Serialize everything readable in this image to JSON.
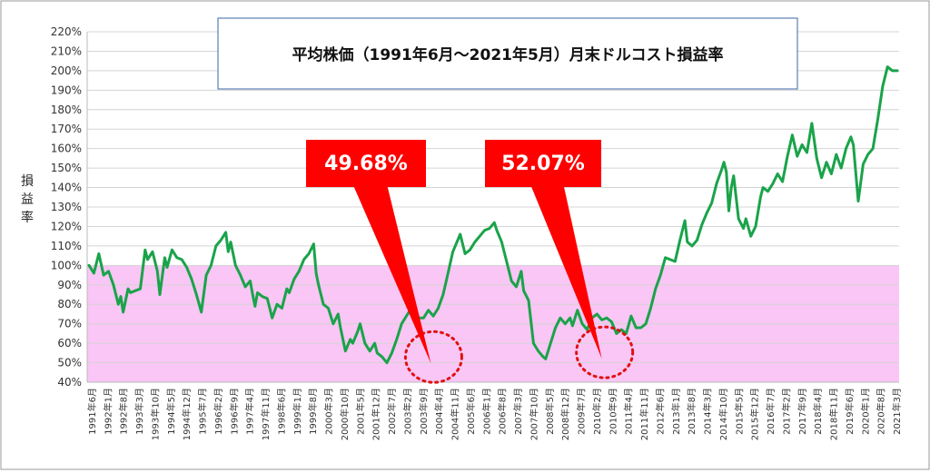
{
  "chart_data": {
    "type": "line",
    "title": "平均株価（1991年6月～2021年5月）月末ドルコスト損益率",
    "ylabel": "損益率",
    "ylim": [
      40,
      220
    ],
    "y_ticks": [
      "40%",
      "50%",
      "60%",
      "70%",
      "80%",
      "90%",
      "100%",
      "110%",
      "120%",
      "130%",
      "140%",
      "150%",
      "160%",
      "170%",
      "180%",
      "190%",
      "200%",
      "210%",
      "220%"
    ],
    "x_tick_labels": [
      "1991年6月",
      "1992年1月",
      "1992年8月",
      "1993年3月",
      "1993年10月",
      "1994年5月",
      "1994年12月",
      "1995年7月",
      "1996年2月",
      "1996年9月",
      "1997年4月",
      "1997年11月",
      "1998年6月",
      "1999年1月",
      "1999年8月",
      "2000年3月",
      "2000年10月",
      "2001年5月",
      "2001年12月",
      "2002年7月",
      "2003年2月",
      "2003年9月",
      "2004年4月",
      "2004年11月",
      "2005年6月",
      "2006年1月",
      "2006年8月",
      "2007年3月",
      "2007年10月",
      "2008年5月",
      "2008年12月",
      "2009年7月",
      "2010年2月",
      "2010年9月",
      "2011年4月",
      "2011年11月",
      "2012年6月",
      "2013年1月",
      "2013年8月",
      "2014年3月",
      "2014年10月",
      "2015年5月",
      "2015年12月",
      "2016年7月",
      "2017年2月",
      "2017年9月",
      "2018年4月",
      "2018年11月",
      "2019年6月",
      "2020年1月",
      "2020年8月",
      "2021年3月"
    ],
    "loss_zone": {
      "from": 40,
      "to": 100,
      "color": "#f9c6f5"
    },
    "line_color": "#1aa34a",
    "callout_color": "#ff0000",
    "annotations": [
      {
        "label": "49.68%",
        "month_index": 140,
        "value": 49.68
      },
      {
        "label": "52.07%",
        "month_index": 210,
        "value": 52.07
      }
    ],
    "keypoints": [
      [
        0,
        100
      ],
      [
        2,
        96
      ],
      [
        4,
        106
      ],
      [
        6,
        95
      ],
      [
        8,
        97
      ],
      [
        10,
        90
      ],
      [
        12,
        80
      ],
      [
        13,
        84
      ],
      [
        14,
        76
      ],
      [
        16,
        88
      ],
      [
        17,
        86
      ],
      [
        19,
        87
      ],
      [
        21,
        88
      ],
      [
        23,
        108
      ],
      [
        24,
        103
      ],
      [
        26,
        107
      ],
      [
        28,
        97
      ],
      [
        29,
        85
      ],
      [
        31,
        104
      ],
      [
        32,
        99
      ],
      [
        34,
        108
      ],
      [
        36,
        104
      ],
      [
        38,
        103
      ],
      [
        40,
        99
      ],
      [
        42,
        93
      ],
      [
        44,
        85
      ],
      [
        46,
        76
      ],
      [
        48,
        95
      ],
      [
        50,
        100
      ],
      [
        52,
        110
      ],
      [
        54,
        113
      ],
      [
        56,
        117
      ],
      [
        57,
        107
      ],
      [
        58,
        112
      ],
      [
        60,
        100
      ],
      [
        62,
        95
      ],
      [
        64,
        89
      ],
      [
        66,
        92
      ],
      [
        67,
        85
      ],
      [
        68,
        79
      ],
      [
        69,
        86
      ],
      [
        71,
        84
      ],
      [
        73,
        83
      ],
      [
        75,
        73
      ],
      [
        77,
        80
      ],
      [
        79,
        78
      ],
      [
        81,
        88
      ],
      [
        82,
        86
      ],
      [
        84,
        93
      ],
      [
        86,
        97
      ],
      [
        88,
        103
      ],
      [
        90,
        106
      ],
      [
        92,
        111
      ],
      [
        93,
        96
      ],
      [
        94,
        90
      ],
      [
        96,
        80
      ],
      [
        98,
        78
      ],
      [
        100,
        70
      ],
      [
        102,
        75
      ],
      [
        103,
        68
      ],
      [
        105,
        56
      ],
      [
        107,
        62
      ],
      [
        108,
        60
      ],
      [
        110,
        66
      ],
      [
        111,
        70
      ],
      [
        113,
        60
      ],
      [
        115,
        56
      ],
      [
        117,
        60
      ],
      [
        118,
        55
      ],
      [
        120,
        53
      ],
      [
        122,
        50
      ],
      [
        124,
        55
      ],
      [
        126,
        62
      ],
      [
        128,
        70
      ],
      [
        130,
        74
      ],
      [
        132,
        78
      ],
      [
        133,
        77
      ],
      [
        135,
        73
      ],
      [
        137,
        73
      ],
      [
        139,
        77
      ],
      [
        141,
        74
      ],
      [
        143,
        78
      ],
      [
        145,
        85
      ],
      [
        147,
        96
      ],
      [
        149,
        107
      ],
      [
        151,
        113
      ],
      [
        152,
        116
      ],
      [
        154,
        106
      ],
      [
        156,
        108
      ],
      [
        158,
        112
      ],
      [
        160,
        115
      ],
      [
        162,
        118
      ],
      [
        164,
        119
      ],
      [
        166,
        122
      ],
      [
        167,
        118
      ],
      [
        169,
        112
      ],
      [
        171,
        102
      ],
      [
        173,
        92
      ],
      [
        175,
        89
      ],
      [
        177,
        97
      ],
      [
        178,
        87
      ],
      [
        180,
        82
      ],
      [
        182,
        60
      ],
      [
        184,
        56
      ],
      [
        186,
        53
      ],
      [
        187,
        52
      ],
      [
        189,
        60
      ],
      [
        191,
        68
      ],
      [
        193,
        73
      ],
      [
        195,
        70
      ],
      [
        197,
        73
      ],
      [
        198,
        69
      ],
      [
        200,
        77
      ],
      [
        202,
        70
      ],
      [
        204,
        67
      ],
      [
        206,
        73
      ],
      [
        208,
        75
      ],
      [
        210,
        72
      ],
      [
        212,
        73
      ],
      [
        214,
        71
      ],
      [
        216,
        65
      ],
      [
        218,
        67
      ],
      [
        220,
        65
      ],
      [
        222,
        74
      ],
      [
        224,
        68
      ],
      [
        226,
        68
      ],
      [
        228,
        70
      ],
      [
        230,
        78
      ],
      [
        232,
        88
      ],
      [
        234,
        95
      ],
      [
        236,
        104
      ],
      [
        238,
        103
      ],
      [
        240,
        102
      ],
      [
        242,
        113
      ],
      [
        244,
        123
      ],
      [
        245,
        112
      ],
      [
        247,
        110
      ],
      [
        249,
        113
      ],
      [
        251,
        121
      ],
      [
        253,
        127
      ],
      [
        255,
        132
      ],
      [
        257,
        142
      ],
      [
        259,
        149
      ],
      [
        260,
        153
      ],
      [
        261,
        148
      ],
      [
        262,
        128
      ],
      [
        263,
        140
      ],
      [
        264,
        146
      ],
      [
        266,
        124
      ],
      [
        268,
        119
      ],
      [
        269,
        124
      ],
      [
        271,
        115
      ],
      [
        273,
        120
      ],
      [
        275,
        135
      ],
      [
        276,
        140
      ],
      [
        278,
        138
      ],
      [
        280,
        142
      ],
      [
        282,
        147
      ],
      [
        284,
        143
      ],
      [
        286,
        156
      ],
      [
        288,
        167
      ],
      [
        290,
        156
      ],
      [
        292,
        162
      ],
      [
        294,
        158
      ],
      [
        296,
        173
      ],
      [
        298,
        155
      ],
      [
        300,
        145
      ],
      [
        302,
        153
      ],
      [
        304,
        147
      ],
      [
        306,
        157
      ],
      [
        308,
        150
      ],
      [
        310,
        160
      ],
      [
        312,
        166
      ],
      [
        313,
        162
      ],
      [
        315,
        133
      ],
      [
        317,
        152
      ],
      [
        319,
        157
      ],
      [
        321,
        160
      ],
      [
        323,
        175
      ],
      [
        325,
        192
      ],
      [
        327,
        202
      ],
      [
        329,
        200
      ],
      [
        331,
        200
      ]
    ]
  }
}
